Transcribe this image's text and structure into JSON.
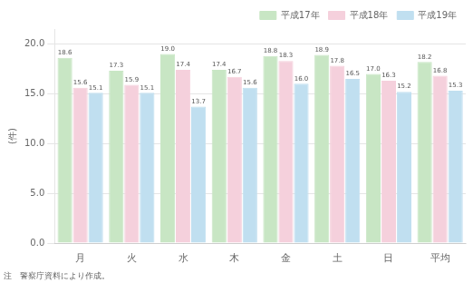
{
  "chart_data": {
    "type": "bar",
    "categories": [
      "月",
      "火",
      "水",
      "木",
      "金",
      "土",
      "日",
      "平均"
    ],
    "series": [
      {
        "name": "平成17年",
        "color": "#c8e6c4",
        "values": [
          18.6,
          17.3,
          19.0,
          17.4,
          18.8,
          18.9,
          17.0,
          18.2
        ],
        "value_labels": [
          "18.6",
          "17.3",
          "19.0",
          "17.4",
          "18.8",
          "18.9",
          "17.0",
          "18.2"
        ]
      },
      {
        "name": "平成18年",
        "color": "#f5d0dc",
        "values": [
          15.6,
          15.9,
          17.4,
          16.7,
          18.3,
          17.8,
          16.3,
          16.8
        ],
        "value_labels": [
          "15.6",
          "15.9",
          "17.4",
          "16.7",
          "18.3",
          "17.8",
          "16.3",
          "16.8"
        ]
      },
      {
        "name": "平成19年",
        "color": "#c0dff0",
        "values": [
          15.1,
          15.1,
          13.7,
          15.6,
          16.0,
          16.5,
          15.2,
          15.3
        ],
        "value_labels": [
          "15.1",
          "15.1",
          "13.7",
          "15.6",
          "16.0",
          "16.5",
          "15.2",
          "15.3"
        ]
      }
    ],
    "ylim": [
      0.0,
      21.5
    ],
    "yticks": [
      {
        "value": 0.0,
        "label": "0.0"
      },
      {
        "value": 5.0,
        "label": "5.0"
      },
      {
        "value": 10.0,
        "label": "10.0"
      },
      {
        "value": 15.0,
        "label": "15.0"
      },
      {
        "value": 20.0,
        "label": "20.0"
      }
    ],
    "ylabel": "(件)",
    "annotations": [
      "注　警察庁資料により作成。"
    ],
    "grid": "y",
    "legend": "top right",
    "data_labels": true
  }
}
